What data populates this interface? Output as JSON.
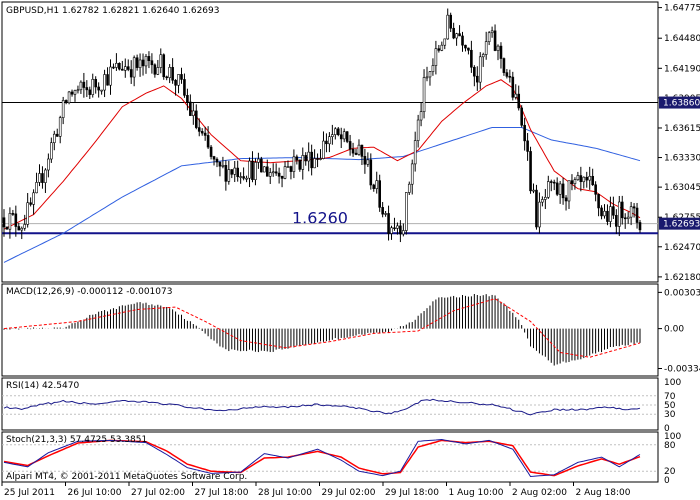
{
  "chart_data": [
    {
      "type": "candlestick",
      "symbol_header": "GBPUSD,H1  1.62782 1.62821 1.62640 1.62693",
      "ylim": [
        1.6215,
        1.648
      ],
      "y_ticks": [
        "1.64775",
        "1.64480",
        "1.64190",
        "1.63905",
        "1.63615",
        "1.63330",
        "1.63045",
        "1.62755",
        "1.62470",
        "1.62180"
      ],
      "x_ticks": [
        "25 Jul 2011",
        "26 Jul 10:00",
        "27 Jul 02:00",
        "27 Jul 18:00",
        "28 Jul 10:00",
        "29 Jul 02:00",
        "29 Jul 18:00",
        "1 Aug 10:00",
        "2 Aug 02:00",
        "2 Aug 18:00"
      ],
      "x_range_hours": [
        0,
        215
      ],
      "hline_upper": {
        "value": 1.6386,
        "label": "1.63860"
      },
      "hline_lower": {
        "value": 1.626,
        "label": "1.6260"
      },
      "current_price": {
        "value": 1.62693,
        "label": "1.62693"
      },
      "ma_fast_anchors": [
        [
          0,
          1.6264
        ],
        [
          10,
          1.6278
        ],
        [
          20,
          1.631
        ],
        [
          30,
          1.6345
        ],
        [
          40,
          1.6382
        ],
        [
          48,
          1.6395
        ],
        [
          54,
          1.6402
        ],
        [
          60,
          1.639
        ],
        [
          70,
          1.6355
        ],
        [
          80,
          1.633
        ],
        [
          90,
          1.6328
        ],
        [
          100,
          1.633
        ],
        [
          110,
          1.6333
        ],
        [
          118,
          1.6342
        ],
        [
          125,
          1.6343
        ],
        [
          133,
          1.633
        ],
        [
          140,
          1.634
        ],
        [
          148,
          1.6368
        ],
        [
          155,
          1.6385
        ],
        [
          163,
          1.6402
        ],
        [
          168,
          1.6408
        ],
        [
          172,
          1.64
        ],
        [
          178,
          1.636
        ],
        [
          186,
          1.632
        ],
        [
          194,
          1.6303
        ],
        [
          200,
          1.63
        ],
        [
          206,
          1.6288
        ],
        [
          212,
          1.628
        ],
        [
          215,
          1.6275
        ]
      ],
      "ma_slow_anchors": [
        [
          0,
          1.6232
        ],
        [
          20,
          1.626
        ],
        [
          40,
          1.6295
        ],
        [
          60,
          1.6325
        ],
        [
          80,
          1.6332
        ],
        [
          100,
          1.6333
        ],
        [
          120,
          1.6331
        ],
        [
          135,
          1.6334
        ],
        [
          150,
          1.6348
        ],
        [
          165,
          1.6362
        ],
        [
          175,
          1.6362
        ],
        [
          185,
          1.635
        ],
        [
          200,
          1.6342
        ],
        [
          215,
          1.633
        ]
      ],
      "candle_anchors": [
        [
          0,
          1.6275
        ],
        [
          6,
          1.627
        ],
        [
          10,
          1.629
        ],
        [
          16,
          1.6345
        ],
        [
          22,
          1.6395
        ],
        [
          28,
          1.6398
        ],
        [
          34,
          1.641
        ],
        [
          40,
          1.6422
        ],
        [
          46,
          1.642
        ],
        [
          52,
          1.6425
        ],
        [
          56,
          1.6415
        ],
        [
          60,
          1.64
        ],
        [
          64,
          1.637
        ],
        [
          68,
          1.6345
        ],
        [
          72,
          1.632
        ],
        [
          78,
          1.6322
        ],
        [
          84,
          1.6322
        ],
        [
          92,
          1.632
        ],
        [
          100,
          1.633
        ],
        [
          106,
          1.6335
        ],
        [
          110,
          1.6355
        ],
        [
          114,
          1.635
        ],
        [
          118,
          1.634
        ],
        [
          122,
          1.633
        ],
        [
          126,
          1.63
        ],
        [
          130,
          1.627
        ],
        [
          135,
          1.627
        ],
        [
          138,
          1.633
        ],
        [
          142,
          1.64
        ],
        [
          146,
          1.643
        ],
        [
          150,
          1.646
        ],
        [
          156,
          1.6448
        ],
        [
          160,
          1.641
        ],
        [
          164,
          1.645
        ],
        [
          168,
          1.643
        ],
        [
          172,
          1.6395
        ],
        [
          176,
          1.636
        ],
        [
          178,
          1.631
        ],
        [
          180,
          1.6275
        ],
        [
          184,
          1.63
        ],
        [
          190,
          1.63
        ],
        [
          194,
          1.6305
        ],
        [
          198,
          1.6305
        ],
        [
          202,
          1.628
        ],
        [
          206,
          1.6275
        ],
        [
          210,
          1.6285
        ],
        [
          215,
          1.627
        ]
      ]
    },
    {
      "type": "histogram",
      "indicator": "MACD(12,26,9) -0.000112 -0.001073",
      "ylim": [
        -0.0038,
        0.0034
      ],
      "y_ticks": [
        "0.003034",
        "0.00",
        "-0.00334"
      ],
      "zero_level": 0.0,
      "hist_anchors": [
        [
          0,
          0.0
        ],
        [
          20,
          0.0
        ],
        [
          30,
          0.0012
        ],
        [
          45,
          0.0022
        ],
        [
          56,
          0.0018
        ],
        [
          66,
          0.0
        ],
        [
          75,
          -0.0018
        ],
        [
          90,
          -0.0019
        ],
        [
          105,
          -0.0012
        ],
        [
          120,
          -0.0005
        ],
        [
          130,
          -0.0003
        ],
        [
          138,
          0.0006
        ],
        [
          146,
          0.0025
        ],
        [
          158,
          0.0028
        ],
        [
          166,
          0.0028
        ],
        [
          174,
          0.0008
        ],
        [
          178,
          -0.0015
        ],
        [
          186,
          -0.003
        ],
        [
          195,
          -0.0025
        ],
        [
          205,
          -0.0016
        ],
        [
          215,
          -0.0011
        ]
      ],
      "signal_anchors": [
        [
          0,
          0.0
        ],
        [
          25,
          0.0006
        ],
        [
          45,
          0.0016
        ],
        [
          58,
          0.0018
        ],
        [
          68,
          0.0006
        ],
        [
          80,
          -0.001
        ],
        [
          95,
          -0.0016
        ],
        [
          110,
          -0.0011
        ],
        [
          125,
          -0.0004
        ],
        [
          140,
          -0.0002
        ],
        [
          152,
          0.0015
        ],
        [
          166,
          0.0025
        ],
        [
          178,
          0.0006
        ],
        [
          188,
          -0.002
        ],
        [
          198,
          -0.0024
        ],
        [
          208,
          -0.0017
        ],
        [
          215,
          -0.0012
        ]
      ]
    },
    {
      "type": "line",
      "indicator": "RSI(14) 42.5470",
      "ylim": [
        0,
        100
      ],
      "y_ticks": [
        "100",
        "70",
        "50",
        "30",
        "0"
      ],
      "levels": [
        70,
        50,
        30
      ],
      "rsi_anchors": [
        [
          0,
          45
        ],
        [
          6,
          40
        ],
        [
          12,
          50
        ],
        [
          20,
          58
        ],
        [
          30,
          52
        ],
        [
          40,
          58
        ],
        [
          50,
          56
        ],
        [
          60,
          48
        ],
        [
          70,
          38
        ],
        [
          78,
          40
        ],
        [
          86,
          47
        ],
        [
          96,
          46
        ],
        [
          106,
          51
        ],
        [
          116,
          46
        ],
        [
          124,
          38
        ],
        [
          130,
          32
        ],
        [
          136,
          40
        ],
        [
          142,
          62
        ],
        [
          150,
          58
        ],
        [
          158,
          54
        ],
        [
          166,
          50
        ],
        [
          172,
          40
        ],
        [
          178,
          30
        ],
        [
          186,
          40
        ],
        [
          196,
          40
        ],
        [
          204,
          46
        ],
        [
          210,
          40
        ],
        [
          215,
          42
        ]
      ]
    },
    {
      "type": "line",
      "indicator": "Stoch(21,3,3) 57.4725 53.3851",
      "ylim": [
        0,
        100
      ],
      "y_ticks": [
        "100",
        "80",
        "20",
        "0"
      ],
      "levels": [
        80,
        20
      ],
      "main_anchors": [
        [
          0,
          40
        ],
        [
          8,
          30
        ],
        [
          15,
          62
        ],
        [
          25,
          88
        ],
        [
          36,
          90
        ],
        [
          48,
          85
        ],
        [
          55,
          58
        ],
        [
          62,
          28
        ],
        [
          70,
          15
        ],
        [
          80,
          18
        ],
        [
          88,
          60
        ],
        [
          96,
          50
        ],
        [
          106,
          70
        ],
        [
          114,
          45
        ],
        [
          120,
          20
        ],
        [
          128,
          10
        ],
        [
          134,
          20
        ],
        [
          140,
          88
        ],
        [
          148,
          92
        ],
        [
          156,
          82
        ],
        [
          164,
          90
        ],
        [
          172,
          70
        ],
        [
          178,
          8
        ],
        [
          186,
          12
        ],
        [
          194,
          40
        ],
        [
          202,
          52
        ],
        [
          208,
          30
        ],
        [
          215,
          58
        ]
      ],
      "signal_anchors": [
        [
          0,
          42
        ],
        [
          8,
          33
        ],
        [
          15,
          55
        ],
        [
          25,
          84
        ],
        [
          36,
          90
        ],
        [
          48,
          87
        ],
        [
          55,
          66
        ],
        [
          62,
          36
        ],
        [
          70,
          20
        ],
        [
          80,
          17
        ],
        [
          88,
          50
        ],
        [
          96,
          52
        ],
        [
          106,
          65
        ],
        [
          114,
          52
        ],
        [
          120,
          27
        ],
        [
          128,
          14
        ],
        [
          134,
          17
        ],
        [
          140,
          75
        ],
        [
          148,
          90
        ],
        [
          156,
          85
        ],
        [
          164,
          88
        ],
        [
          172,
          78
        ],
        [
          178,
          18
        ],
        [
          186,
          10
        ],
        [
          194,
          32
        ],
        [
          202,
          48
        ],
        [
          208,
          36
        ],
        [
          215,
          53
        ]
      ]
    }
  ],
  "copyright": "Alpari MT4, © 2001-2011 MetaQuotes Software Corp.",
  "colors": {
    "candle": "#000000",
    "ma_fast": "#e00000",
    "ma_slow": "#3060e0",
    "hline_upper": "#000000",
    "hline_lower": "#12128a",
    "macd_hist": "#000000",
    "macd_signal": "#ff0000",
    "rsi": "#1a1a8a",
    "stoch_main": "#1a1aa0",
    "stoch_signal": "#ff0000",
    "level": "#c0c0c0",
    "price_label_bg": "#1a1a6e"
  }
}
